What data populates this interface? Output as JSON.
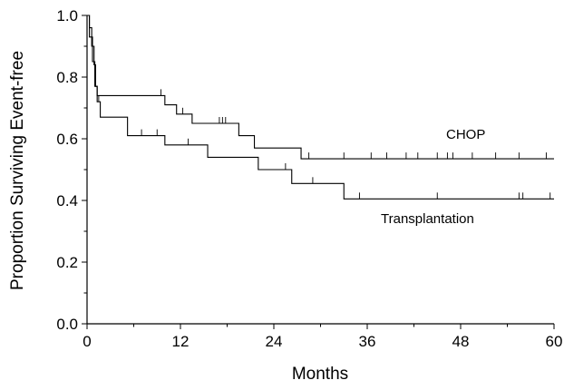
{
  "chart_data": {
    "type": "line",
    "title": "",
    "xlabel": "Months",
    "ylabel": "Proportion Surviving Event-free",
    "xlim": [
      0,
      60
    ],
    "ylim": [
      0,
      1.0
    ],
    "x_ticks": [
      0,
      12,
      24,
      36,
      48,
      60
    ],
    "x_tick_labels": [
      "0",
      "12",
      "24",
      "36",
      "48",
      "60"
    ],
    "y_ticks": [
      0,
      0.2,
      0.4,
      0.6,
      0.8,
      1.0
    ],
    "y_tick_labels": [
      "0.0",
      "0.2",
      "0.4",
      "0.6",
      "0.8",
      "1.0"
    ],
    "grid": false,
    "series": [
      {
        "name": "CHOP",
        "steps": [
          [
            0,
            1.0
          ],
          [
            0.3,
            0.96
          ],
          [
            0.6,
            0.9
          ],
          [
            0.9,
            0.84
          ],
          [
            1.1,
            0.77
          ],
          [
            1.3,
            0.74
          ],
          [
            10.0,
            0.71
          ],
          [
            11.5,
            0.68
          ],
          [
            13.5,
            0.65
          ],
          [
            19.5,
            0.61
          ],
          [
            21.5,
            0.57
          ],
          [
            27.5,
            0.535
          ],
          [
            60,
            0.535
          ]
        ],
        "censored": [
          [
            9.5,
            0.74
          ],
          [
            12.3,
            0.68
          ],
          [
            17.0,
            0.65
          ],
          [
            17.4,
            0.65
          ],
          [
            17.8,
            0.65
          ],
          [
            28.5,
            0.535
          ],
          [
            33.0,
            0.535
          ],
          [
            36.5,
            0.535
          ],
          [
            38.5,
            0.535
          ],
          [
            41.0,
            0.535
          ],
          [
            42.5,
            0.535
          ],
          [
            45.0,
            0.535
          ],
          [
            46.3,
            0.535
          ],
          [
            47.0,
            0.535
          ],
          [
            49.5,
            0.535
          ],
          [
            52.5,
            0.535
          ],
          [
            55.5,
            0.535
          ],
          [
            59.0,
            0.535
          ]
        ]
      },
      {
        "name": "Transplantation",
        "steps": [
          [
            0,
            1.0
          ],
          [
            0.3,
            0.93
          ],
          [
            0.7,
            0.85
          ],
          [
            1.0,
            0.77
          ],
          [
            1.3,
            0.72
          ],
          [
            1.7,
            0.67
          ],
          [
            5.2,
            0.61
          ],
          [
            10.0,
            0.58
          ],
          [
            15.5,
            0.54
          ],
          [
            22.0,
            0.5
          ],
          [
            26.3,
            0.455
          ],
          [
            33.0,
            0.405
          ],
          [
            60,
            0.405
          ]
        ],
        "censored": [
          [
            1.5,
            0.72
          ],
          [
            7.0,
            0.61
          ],
          [
            9.0,
            0.61
          ],
          [
            13.0,
            0.58
          ],
          [
            25.5,
            0.5
          ],
          [
            29.0,
            0.455
          ],
          [
            35.0,
            0.405
          ],
          [
            45.0,
            0.405
          ],
          [
            55.5,
            0.405
          ],
          [
            56.0,
            0.405
          ],
          [
            59.5,
            0.405
          ]
        ]
      }
    ]
  },
  "labels": {
    "chop": "CHOP",
    "transplantation": "Transplantation"
  }
}
